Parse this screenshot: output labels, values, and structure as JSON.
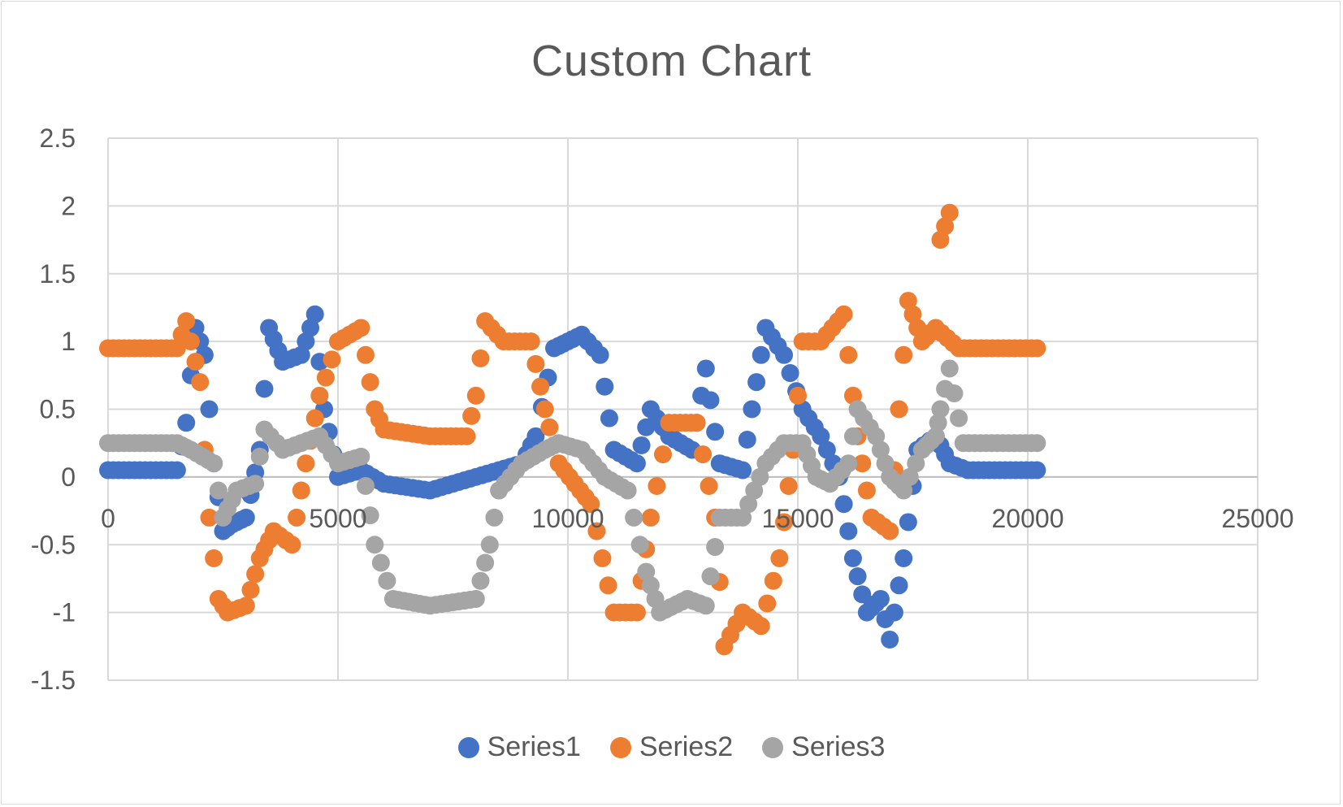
{
  "chart_data": {
    "type": "scatter",
    "title": "Custom Chart",
    "xlabel": "",
    "ylabel": "",
    "xlim": [
      0,
      25000
    ],
    "ylim": [
      -1.5,
      2.5
    ],
    "xticks": [
      0,
      5000,
      10000,
      15000,
      20000,
      25000
    ],
    "yticks": [
      -1.5,
      -1,
      -0.5,
      0,
      0.5,
      1,
      1.5,
      2,
      2.5
    ],
    "xtick_labels": [
      "0",
      "5000",
      "10000",
      "15000",
      "20000",
      "25000"
    ],
    "ytick_labels": [
      "-1.5",
      "-1",
      "-0.5",
      "0",
      "0.5",
      "1",
      "1.5",
      "2",
      "2.5"
    ],
    "grid": true,
    "legend_position": "bottom",
    "series": [
      {
        "name": "Series1",
        "color": "#4472C4",
        "points": [
          [
            0,
            0.05
          ],
          [
            1500,
            0.05
          ],
          [
            1700,
            0.4
          ],
          [
            1900,
            1.1
          ],
          [
            2100,
            0.9
          ],
          [
            2300,
            0.1
          ],
          [
            2500,
            -0.4
          ],
          [
            2700,
            -0.35
          ],
          [
            3000,
            -0.3
          ],
          [
            3300,
            0.2
          ],
          [
            3500,
            1.1
          ],
          [
            3800,
            0.85
          ],
          [
            4200,
            0.9
          ],
          [
            4500,
            1.2
          ],
          [
            4700,
            0.5
          ],
          [
            5000,
            0.0
          ],
          [
            5500,
            0.05
          ],
          [
            6000,
            -0.05
          ],
          [
            7000,
            -0.1
          ],
          [
            8000,
            0.0
          ],
          [
            8500,
            0.05
          ],
          [
            9000,
            0.1
          ],
          [
            9300,
            0.3
          ],
          [
            9700,
            0.95
          ],
          [
            10000,
            1.0
          ],
          [
            10300,
            1.05
          ],
          [
            10700,
            0.9
          ],
          [
            11000,
            0.2
          ],
          [
            11500,
            0.1
          ],
          [
            11800,
            0.5
          ],
          [
            12200,
            0.3
          ],
          [
            12700,
            0.2
          ],
          [
            13000,
            0.8
          ],
          [
            13300,
            0.1
          ],
          [
            13800,
            0.05
          ],
          [
            14000,
            0.5
          ],
          [
            14300,
            1.1
          ],
          [
            14700,
            0.9
          ],
          [
            15100,
            0.5
          ],
          [
            15500,
            0.3
          ],
          [
            15900,
            0.0
          ],
          [
            16200,
            -0.6
          ],
          [
            16500,
            -1.0
          ],
          [
            16800,
            -0.9
          ],
          [
            17000,
            -1.2
          ],
          [
            17300,
            -0.6
          ],
          [
            17600,
            0.2
          ],
          [
            18000,
            0.3
          ],
          [
            18300,
            0.1
          ],
          [
            18700,
            0.05
          ],
          [
            20200,
            0.05
          ]
        ]
      },
      {
        "name": "Series2",
        "color": "#ED7D31",
        "points": [
          [
            0,
            0.95
          ],
          [
            1500,
            0.95
          ],
          [
            1700,
            1.15
          ],
          [
            2000,
            0.7
          ],
          [
            2200,
            -0.3
          ],
          [
            2400,
            -0.9
          ],
          [
            2600,
            -1.0
          ],
          [
            3000,
            -0.95
          ],
          [
            3300,
            -0.6
          ],
          [
            3600,
            -0.4
          ],
          [
            4000,
            -0.5
          ],
          [
            4300,
            0.1
          ],
          [
            4600,
            0.6
          ],
          [
            5000,
            1.0
          ],
          [
            5500,
            1.1
          ],
          [
            5800,
            0.5
          ],
          [
            6000,
            0.35
          ],
          [
            7000,
            0.3
          ],
          [
            7800,
            0.3
          ],
          [
            8000,
            0.6
          ],
          [
            8200,
            1.15
          ],
          [
            8600,
            1.0
          ],
          [
            9200,
            1.0
          ],
          [
            9500,
            0.5
          ],
          [
            9800,
            0.1
          ],
          [
            10500,
            -0.2
          ],
          [
            11000,
            -1.0
          ],
          [
            11500,
            -1.0
          ],
          [
            11800,
            -0.3
          ],
          [
            12200,
            0.4
          ],
          [
            12800,
            0.4
          ],
          [
            13200,
            -0.3
          ],
          [
            13400,
            -1.25
          ],
          [
            13800,
            -1.0
          ],
          [
            14200,
            -1.1
          ],
          [
            14600,
            -0.6
          ],
          [
            14900,
            0.2
          ],
          [
            15100,
            1.0
          ],
          [
            15500,
            1.0
          ],
          [
            16000,
            1.2
          ],
          [
            16300,
            0.3
          ],
          [
            16600,
            -0.3
          ],
          [
            17000,
            -0.4
          ],
          [
            17200,
            0.5
          ],
          [
            17400,
            1.3
          ],
          [
            17700,
            1.0
          ],
          [
            18000,
            1.1
          ],
          [
            18500,
            0.95
          ],
          [
            20200,
            0.95
          ],
          [
            18100,
            1.75
          ],
          [
            18300,
            1.95
          ]
        ]
      },
      {
        "name": "Series3",
        "color": "#A5A5A5",
        "points": [
          [
            0,
            0.25
          ],
          [
            1500,
            0.25
          ],
          [
            1800,
            0.2
          ],
          [
            2300,
            0.1
          ],
          [
            2500,
            -0.3
          ],
          [
            2800,
            -0.1
          ],
          [
            3200,
            -0.05
          ],
          [
            3400,
            0.35
          ],
          [
            3800,
            0.2
          ],
          [
            4200,
            0.25
          ],
          [
            4600,
            0.3
          ],
          [
            5000,
            0.1
          ],
          [
            5500,
            0.15
          ],
          [
            5800,
            -0.5
          ],
          [
            6200,
            -0.9
          ],
          [
            7000,
            -0.95
          ],
          [
            8000,
            -0.9
          ],
          [
            8300,
            -0.5
          ],
          [
            8500,
            -0.1
          ],
          [
            9000,
            0.1
          ],
          [
            9500,
            0.2
          ],
          [
            9800,
            0.25
          ],
          [
            10300,
            0.2
          ],
          [
            10800,
            0.0
          ],
          [
            11300,
            -0.1
          ],
          [
            11700,
            -0.7
          ],
          [
            12000,
            -1.0
          ],
          [
            12600,
            -0.9
          ],
          [
            13000,
            -0.95
          ],
          [
            13300,
            -0.3
          ],
          [
            13800,
            -0.3
          ],
          [
            14300,
            0.1
          ],
          [
            14700,
            0.25
          ],
          [
            15100,
            0.25
          ],
          [
            15400,
            0.0
          ],
          [
            15700,
            -0.05
          ],
          [
            16100,
            0.1
          ],
          [
            16300,
            0.5
          ],
          [
            16700,
            0.3
          ],
          [
            17000,
            0.0
          ],
          [
            17300,
            -0.1
          ],
          [
            17700,
            0.2
          ],
          [
            18000,
            0.3
          ],
          [
            18100,
            0.5
          ],
          [
            18300,
            0.8
          ],
          [
            18600,
            0.25
          ],
          [
            20200,
            0.25
          ]
        ]
      }
    ]
  }
}
